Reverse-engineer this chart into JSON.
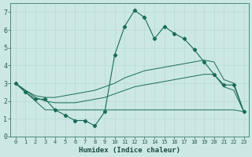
{
  "x": [
    0,
    1,
    2,
    3,
    4,
    5,
    6,
    7,
    8,
    9,
    10,
    11,
    12,
    13,
    14,
    15,
    16,
    17,
    18,
    19,
    20,
    21,
    22,
    23
  ],
  "line_main": [
    3.0,
    2.5,
    2.1,
    2.1,
    1.5,
    1.2,
    0.9,
    0.9,
    0.6,
    1.4,
    4.6,
    6.2,
    7.1,
    6.7,
    5.5,
    6.2,
    5.8,
    5.5,
    4.9,
    4.2,
    3.5,
    2.9,
    2.9,
    1.4
  ],
  "line_upper": [
    3.0,
    2.6,
    2.3,
    2.2,
    2.2,
    2.3,
    2.4,
    2.5,
    2.6,
    2.8,
    3.0,
    3.3,
    3.5,
    3.7,
    3.8,
    3.9,
    4.0,
    4.1,
    4.2,
    4.3,
    4.2,
    3.2,
    3.0,
    1.4
  ],
  "line_middle": [
    3.0,
    2.6,
    2.2,
    2.0,
    1.9,
    1.9,
    1.9,
    2.0,
    2.1,
    2.2,
    2.4,
    2.6,
    2.8,
    2.9,
    3.0,
    3.1,
    3.2,
    3.3,
    3.4,
    3.5,
    3.5,
    2.8,
    2.6,
    1.4
  ],
  "line_lower": [
    3.0,
    2.5,
    2.0,
    1.5,
    1.5,
    1.5,
    1.5,
    1.5,
    1.5,
    1.5,
    1.5,
    1.5,
    1.5,
    1.5,
    1.5,
    1.5,
    1.5,
    1.5,
    1.5,
    1.5,
    1.5,
    1.5,
    1.5,
    1.4
  ],
  "color": "#1a6b5a",
  "bg_color": "#cce8e4",
  "grid_color": "#b8d8d4",
  "xlabel": "Humidex (Indice chaleur)",
  "ylim": [
    0,
    7.5
  ],
  "xlim": [
    -0.5,
    23.5
  ],
  "yticks": [
    0,
    1,
    2,
    3,
    4,
    5,
    6,
    7
  ],
  "xticks": [
    0,
    1,
    2,
    3,
    4,
    5,
    6,
    7,
    8,
    9,
    10,
    11,
    12,
    13,
    14,
    15,
    16,
    17,
    18,
    19,
    20,
    21,
    22,
    23
  ]
}
